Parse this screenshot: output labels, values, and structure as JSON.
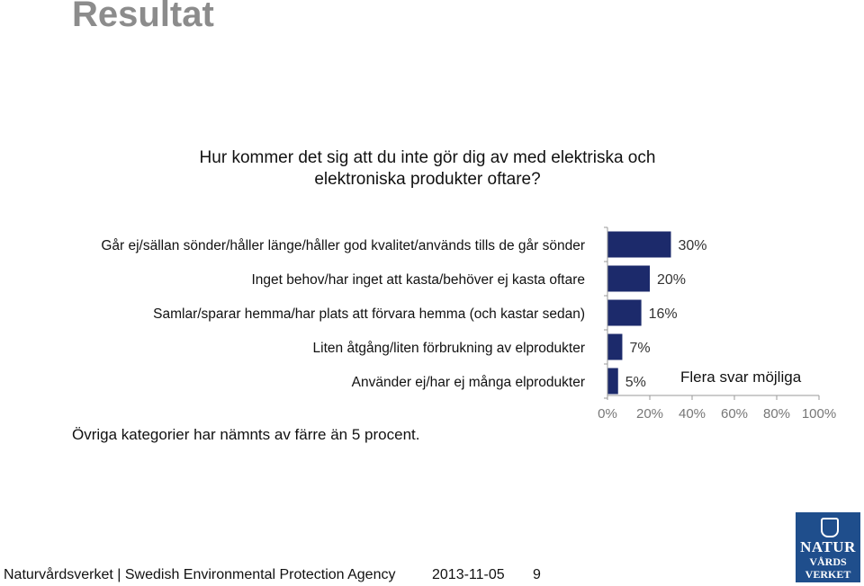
{
  "slide": {
    "title": "Resultat",
    "question_line1": "Hur kommer det sig att du inte gör dig av med elektriska och",
    "question_line2": "elektroniska produkter oftare?",
    "footnote": "Övriga kategorier har nämnts av färre än 5 procent.",
    "note": "Flera svar möjliga"
  },
  "footer": {
    "organization": "Naturvårdsverket | Swedish Environmental Protection Agency",
    "date": "2013-11-05",
    "page": "9"
  },
  "logo": {
    "line1": "NATUR",
    "line2": "VÅRDS",
    "line3": "VERKET"
  },
  "chart_data": {
    "type": "bar",
    "orientation": "horizontal",
    "categories": [
      "Går ej/sällan sönder/håller länge/håller god kvalitet/används tills de går sönder",
      "Inget behov/har inget att kasta/behöver ej kasta oftare",
      "Samlar/sparar hemma/har plats att förvara hemma (och kastar sedan)",
      "Liten åtgång/liten förbrukning av elprodukter",
      "Använder ej/har ej många elprodukter"
    ],
    "values": [
      30,
      20,
      16,
      7,
      5
    ],
    "data_labels": [
      "30%",
      "20%",
      "16%",
      "7%",
      "5%"
    ],
    "xlim": [
      0,
      100
    ],
    "xticks": [
      "0%",
      "20%",
      "40%",
      "60%",
      "80%",
      "100%"
    ],
    "grid": false,
    "bar_color": "#1c2a6b"
  }
}
